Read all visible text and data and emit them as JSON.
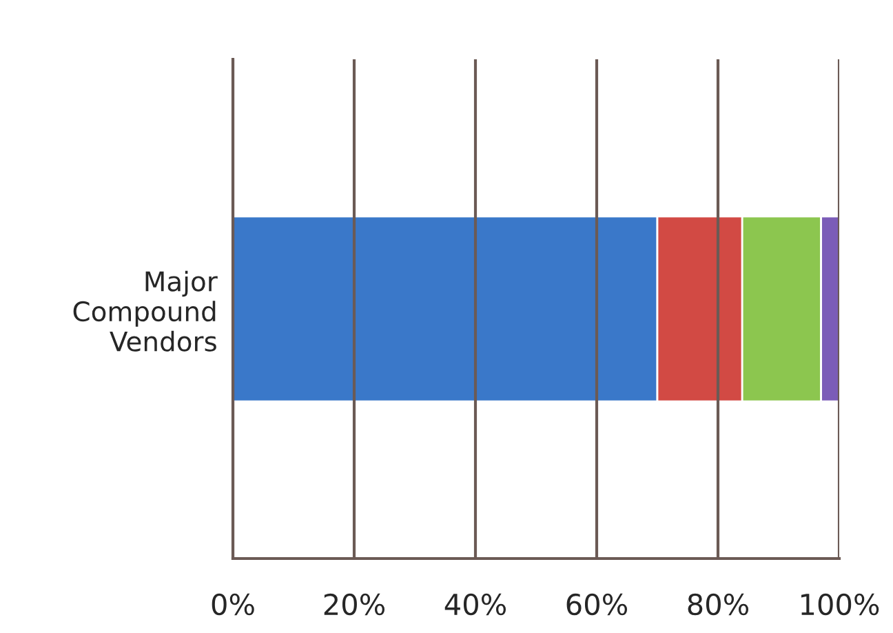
{
  "chart_data": {
    "type": "bar",
    "orientation": "horizontal",
    "stacked": true,
    "categories": [
      "Major\nCompound\nVendors"
    ],
    "series": [
      {
        "color": "#3a78c9",
        "values": [
          70
        ]
      },
      {
        "color": "#d24a44",
        "values": [
          14
        ]
      },
      {
        "color": "#8cc64f",
        "values": [
          13
        ]
      },
      {
        "color": "#7b5cb8",
        "values": [
          3
        ]
      }
    ],
    "xlim": [
      0,
      100
    ],
    "xticks": [
      {
        "value": 0,
        "label": "0%"
      },
      {
        "value": 20,
        "label": "20%"
      },
      {
        "value": 40,
        "label": "40%"
      },
      {
        "value": 60,
        "label": "60%"
      },
      {
        "value": 80,
        "label": "80%"
      },
      {
        "value": 100,
        "label": "100%"
      }
    ],
    "grid": "x",
    "legend": false
  }
}
